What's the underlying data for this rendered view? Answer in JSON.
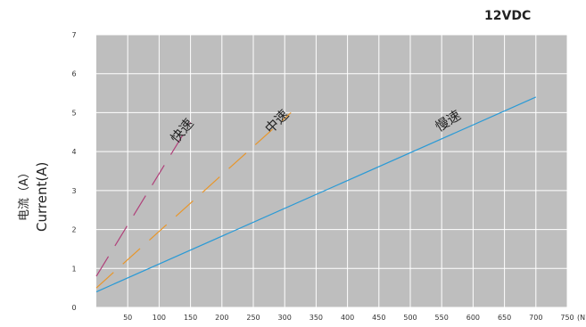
{
  "chart_data": {
    "type": "line",
    "title": "12VDC",
    "ylabel_cn": "电流（A）",
    "ylabel_en": "Current(A)",
    "xlabel_unit": "(N)",
    "xlim": [
      0,
      750
    ],
    "ylim": [
      0,
      7
    ],
    "x_ticks": [
      50,
      100,
      150,
      200,
      250,
      300,
      350,
      400,
      450,
      500,
      550,
      600,
      650,
      700,
      750
    ],
    "y_ticks": [
      0,
      1,
      2,
      3,
      4,
      5,
      6,
      7
    ],
    "grid": true,
    "series": [
      {
        "name": "快速",
        "color": "#b0407a",
        "dashed": true,
        "x": [
          0,
          150
        ],
        "y": [
          0.8,
          4.75
        ]
      },
      {
        "name": "中速",
        "color": "#e8962a",
        "dashed": true,
        "x": [
          0,
          310
        ],
        "y": [
          0.5,
          5.0
        ]
      },
      {
        "name": "慢速",
        "color": "#2a9ad6",
        "dashed": false,
        "x": [
          0,
          700
        ],
        "y": [
          0.4,
          5.4
        ]
      }
    ]
  }
}
